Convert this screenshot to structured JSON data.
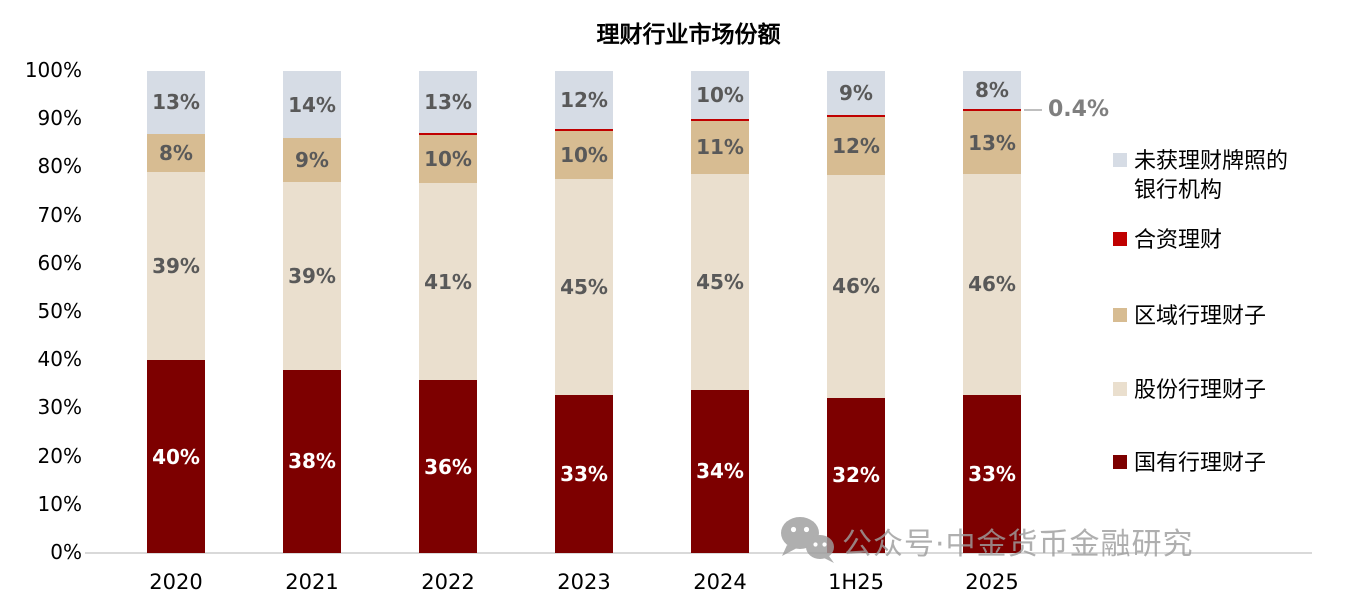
{
  "title": "理财行业市场份额",
  "watermark": {
    "icon": "wechat-icon",
    "text": "公众号·中金货币金融研究"
  },
  "chart_data": {
    "type": "bar",
    "stacked": true,
    "title": "理财行业市场份额",
    "categories": [
      "2020",
      "2021",
      "2022",
      "2023",
      "2024",
      "1H25",
      "2025"
    ],
    "series": [
      {
        "name": "国有行理财子",
        "color": "#7D0000",
        "label_color": "#FFFFFF",
        "show_labels": true,
        "values": [
          40,
          38,
          36,
          33,
          34,
          32,
          33
        ]
      },
      {
        "name": "股份行理财子",
        "color": "#EADFCE",
        "label_color": "#595959",
        "show_labels": true,
        "values": [
          39,
          39,
          41,
          45,
          45,
          46,
          46
        ]
      },
      {
        "name": "区域行理财子",
        "color": "#D7BC92",
        "label_color": "#595959",
        "show_labels": true,
        "values": [
          8,
          9,
          10,
          10,
          11,
          12,
          13
        ]
      },
      {
        "name": "合资理财",
        "color": "#C00000",
        "label_color": "#595959",
        "show_labels": false,
        "values": [
          0,
          0,
          0.4,
          0.4,
          0.4,
          0.4,
          0.4
        ]
      },
      {
        "name": "未获理财牌照的银行机构",
        "color": "#D6DCE5",
        "label_color": "#595959",
        "show_labels": true,
        "values": [
          13,
          14,
          13,
          12,
          10,
          9,
          8
        ]
      }
    ],
    "ylim": [
      0,
      100
    ],
    "yticks": [
      "0%",
      "10%",
      "20%",
      "30%",
      "40%",
      "50%",
      "60%",
      "70%",
      "80%",
      "90%",
      "100%"
    ],
    "grid": false,
    "legend_position": "right",
    "annotation": {
      "text": "0.4%",
      "category": "2025",
      "series": "合资理财"
    }
  },
  "legend": {
    "items": [
      {
        "label": "未获理财牌照的\n银行机构",
        "series": "未获理财牌照的银行机构"
      },
      {
        "label": "合资理财",
        "series": "合资理财"
      },
      {
        "label": "区域行理财子",
        "series": "区域行理财子"
      },
      {
        "label": "股份行理财子",
        "series": "股份行理财子"
      },
      {
        "label": "国有行理财子",
        "series": "国有行理财子"
      }
    ]
  }
}
